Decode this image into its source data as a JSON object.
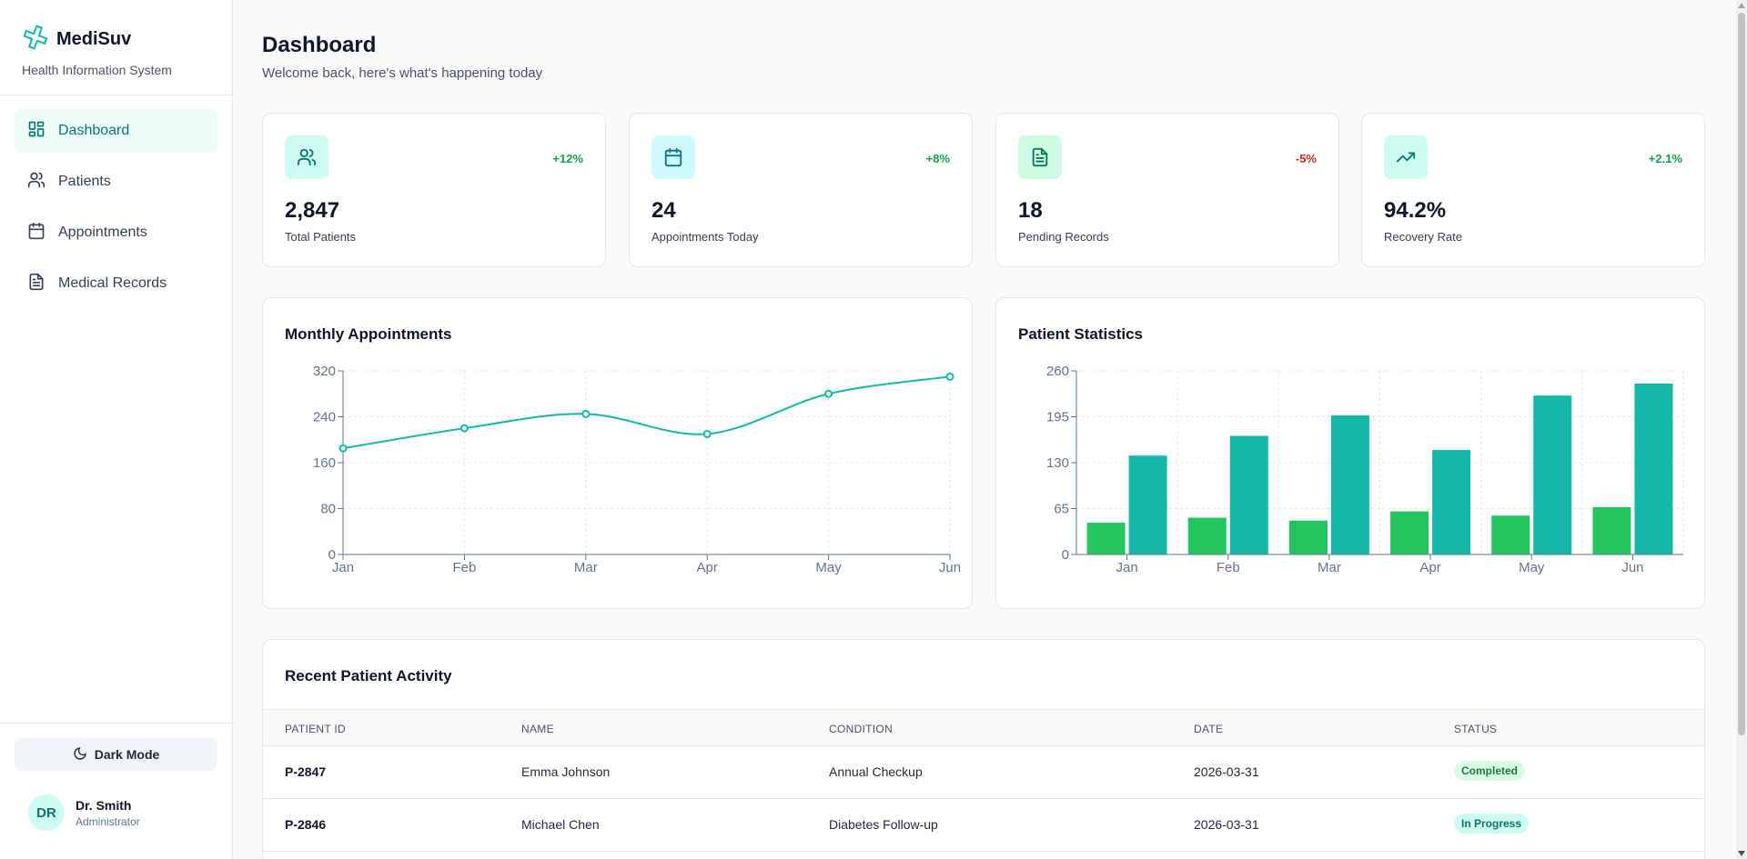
{
  "brand": {
    "name": "MediSuv",
    "subtitle": "Health Information System",
    "logo_icon": "medical-cross-icon",
    "accent": "#14b8a6"
  },
  "nav": [
    {
      "label": "Dashboard",
      "icon": "dashboard-grid-icon",
      "active": true
    },
    {
      "label": "Patients",
      "icon": "users-icon",
      "active": false
    },
    {
      "label": "Appointments",
      "icon": "calendar-icon",
      "active": false
    },
    {
      "label": "Medical Records",
      "icon": "document-icon",
      "active": false
    }
  ],
  "sidebar_footer": {
    "dark_mode_label": "Dark Mode",
    "user": {
      "initials": "DR",
      "name": "Dr. Smith",
      "role": "Administrator"
    }
  },
  "header": {
    "title": "Dashboard",
    "subtitle": "Welcome back, here's what's happening today"
  },
  "stats": [
    {
      "value": "2,847",
      "label": "Total Patients",
      "change": "+12%",
      "trend": "up",
      "icon": "users-icon",
      "icon_bg": "#ccfbf1",
      "icon_color": "#0f766e"
    },
    {
      "value": "24",
      "label": "Appointments Today",
      "change": "+8%",
      "trend": "up",
      "icon": "calendar-icon",
      "icon_bg": "#cffafe",
      "icon_color": "#0e7490"
    },
    {
      "value": "18",
      "label": "Pending Records",
      "change": "-5%",
      "trend": "down",
      "icon": "document-icon",
      "icon_bg": "#d1fae5",
      "icon_color": "#047857"
    },
    {
      "value": "94.2%",
      "label": "Recovery Rate",
      "change": "+2.1%",
      "trend": "up",
      "icon": "trending-up-icon",
      "icon_bg": "#ccfbf1",
      "icon_color": "#0f766e"
    }
  ],
  "charts": {
    "line_title": "Monthly Appointments",
    "bar_title": "Patient Statistics"
  },
  "chart_data": [
    {
      "type": "line",
      "title": "Monthly Appointments",
      "categories": [
        "Jan",
        "Feb",
        "Mar",
        "Apr",
        "May",
        "Jun"
      ],
      "series": [
        {
          "values": [
            185,
            220,
            245,
            210,
            280,
            310
          ],
          "color": "#14b8a6"
        }
      ],
      "ylim": [
        0,
        320
      ],
      "yticks": [
        0,
        80,
        160,
        240,
        320
      ],
      "grid": true
    },
    {
      "type": "bar",
      "title": "Patient Statistics",
      "categories": [
        "Jan",
        "Feb",
        "Mar",
        "Apr",
        "May",
        "Jun"
      ],
      "series": [
        {
          "values": [
            45,
            52,
            48,
            61,
            55,
            67
          ],
          "color": "#22c55e"
        },
        {
          "values": [
            140,
            168,
            197,
            148,
            225,
            242
          ],
          "color": "#14b8a6"
        }
      ],
      "ylim": [
        0,
        260
      ],
      "yticks": [
        0,
        65,
        130,
        195,
        260
      ],
      "grid": true
    }
  ],
  "table": {
    "title": "Recent Patient Activity",
    "columns": [
      "PATIENT ID",
      "NAME",
      "CONDITION",
      "DATE",
      "STATUS"
    ],
    "rows": [
      {
        "id": "P-2847",
        "name": "Emma Johnson",
        "condition": "Annual Checkup",
        "date": "2026-03-31",
        "status": "Completed"
      },
      {
        "id": "P-2846",
        "name": "Michael Chen",
        "condition": "Diabetes Follow-up",
        "date": "2026-03-31",
        "status": "In Progress"
      }
    ]
  }
}
